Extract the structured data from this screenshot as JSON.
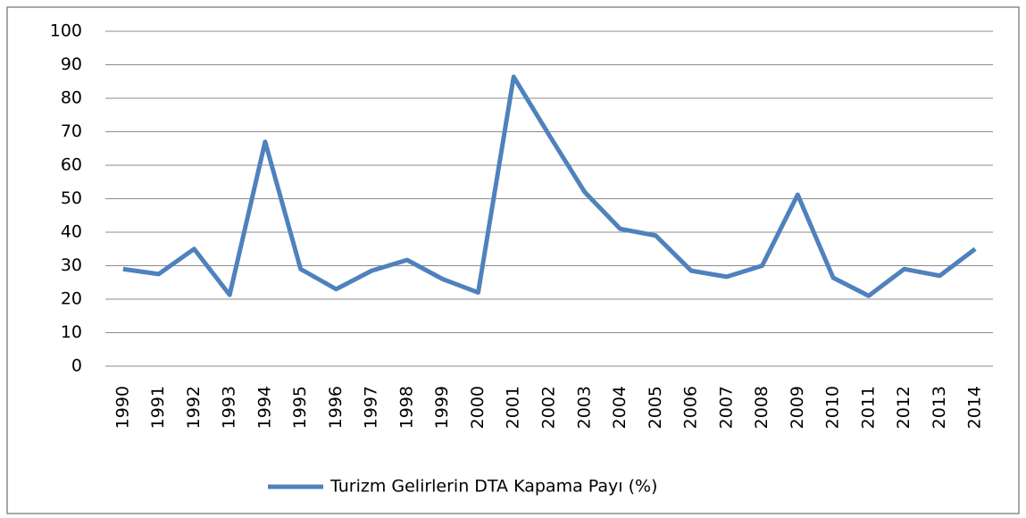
{
  "chart_data": {
    "type": "line",
    "categories": [
      "1990",
      "1991",
      "1992",
      "1993",
      "1994",
      "1995",
      "1996",
      "1997",
      "1998",
      "1999",
      "2000",
      "2001",
      "2002",
      "2003",
      "2004",
      "2005",
      "2006",
      "2007",
      "2008",
      "2009",
      "2010",
      "2011",
      "2012",
      "2013",
      "2014"
    ],
    "series": [
      {
        "name": "Turizm Gelirlerin DTA Kapama Payı (%)",
        "color": "#4f81bd",
        "values": [
          29,
          27.5,
          35,
          21.3,
          67,
          29,
          23,
          28.5,
          31.7,
          26,
          22,
          86.4,
          69,
          52,
          41,
          39,
          28.5,
          26.7,
          30,
          51.2,
          26.4,
          21,
          29,
          27,
          35
        ]
      }
    ],
    "ylim": [
      0,
      100
    ],
    "yticks": [
      0,
      10,
      20,
      30,
      40,
      50,
      60,
      70,
      80,
      90,
      100
    ],
    "grid": true,
    "legend": "bottom"
  }
}
